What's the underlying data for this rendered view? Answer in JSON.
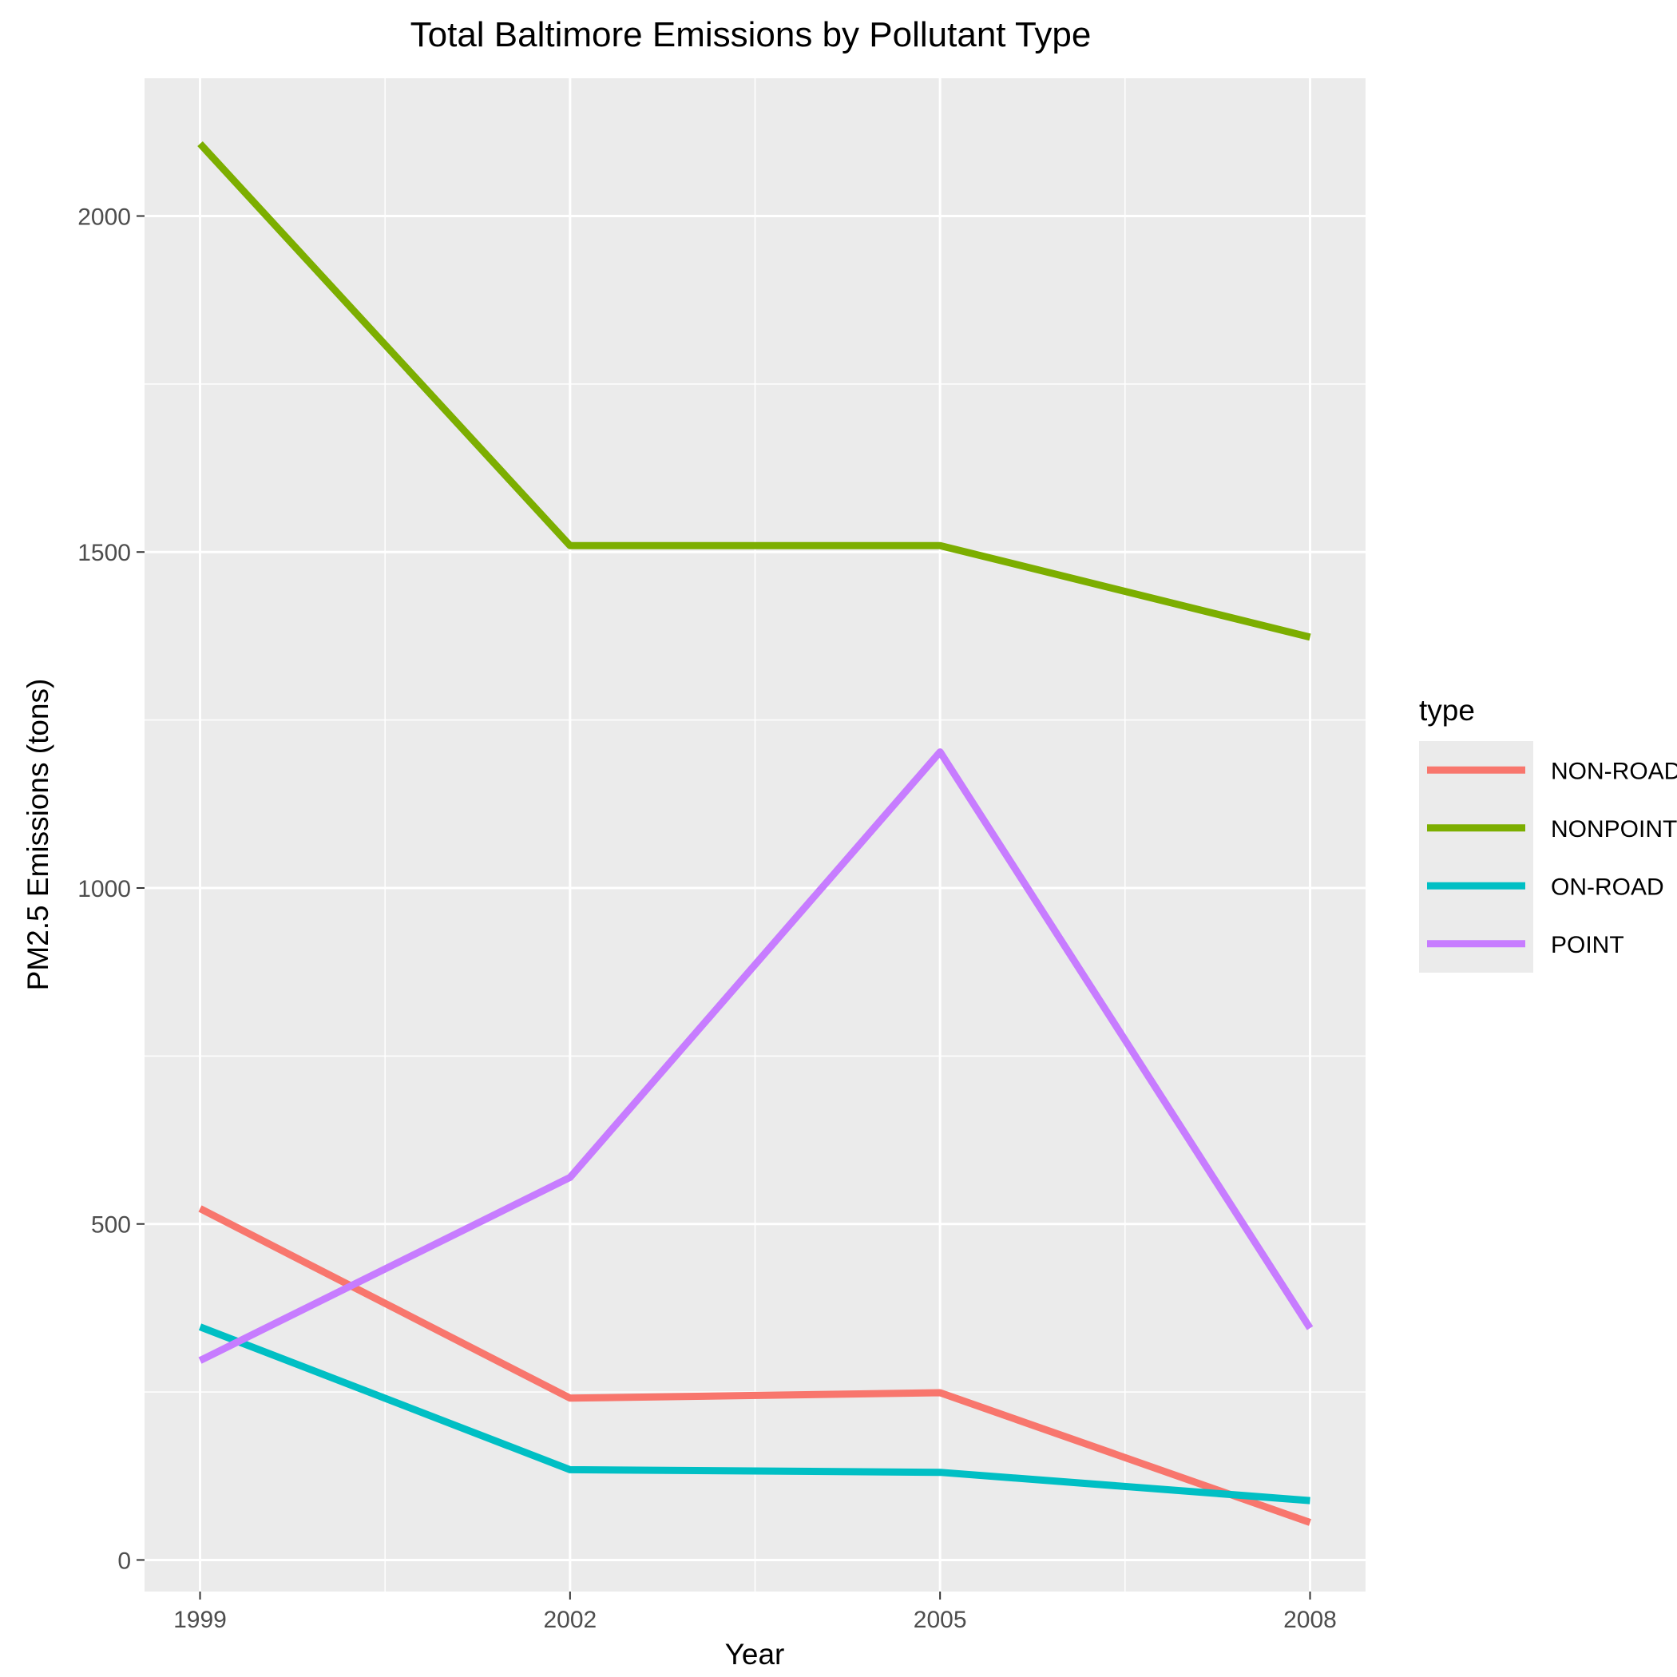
{
  "chart_data": {
    "type": "line",
    "title": "Total Baltimore Emissions by Pollutant Type",
    "xlabel": "Year",
    "ylabel": "PM2.5 Emissions (tons)",
    "x": [
      1999,
      2002,
      2005,
      2008
    ],
    "xlim": [
      1998.55,
      2008.45
    ],
    "ylim": [
      -47,
      2205
    ],
    "yticks": [
      0,
      500,
      1000,
      1500,
      2000
    ],
    "xticks": [
      1999,
      2002,
      2005,
      2008
    ],
    "grid": true,
    "legend": {
      "title": "type",
      "position": "right"
    },
    "series": [
      {
        "name": "NON-ROAD",
        "color": "#F8766D",
        "values": [
          522.9,
          240.8,
          248.9,
          55.8
        ]
      },
      {
        "name": "NONPOINT",
        "color": "#7CAE00",
        "values": [
          2107.6,
          1509.5,
          1509.5,
          1373.2
        ]
      },
      {
        "name": "ON-ROAD",
        "color": "#00BFC4",
        "values": [
          346.8,
          134.3,
          130.4,
          88.3
        ]
      },
      {
        "name": "POINT",
        "color": "#C77CFF",
        "values": [
          296.8,
          569.3,
          1202.5,
          344.98
        ]
      }
    ]
  }
}
